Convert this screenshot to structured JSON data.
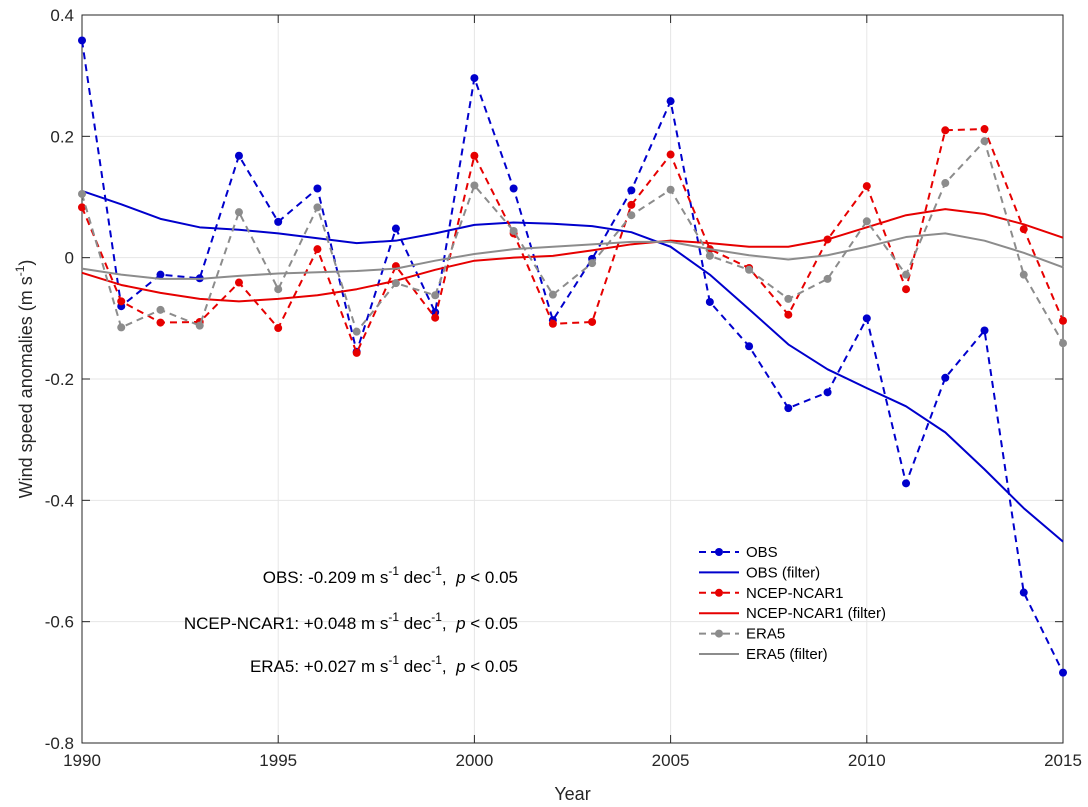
{
  "chart_data": {
    "type": "line",
    "xlabel": "Year",
    "ylabel": "Wind speed anomalies (m s",
    "ylabel_sup": "-1",
    "ylabel_end": ")",
    "xlim": [
      1990,
      2015
    ],
    "ylim": [
      -0.8,
      0.4
    ],
    "x_ticks": [
      1990,
      1995,
      2000,
      2005,
      2010,
      2015
    ],
    "y_ticks": [
      -0.8,
      -0.6,
      -0.4,
      -0.2,
      0,
      0.2,
      0.4
    ],
    "x_tick_labels": [
      "1990",
      "1995",
      "2000",
      "2005",
      "2010",
      "2015"
    ],
    "y_tick_labels": [
      "-0.8",
      "-0.6",
      "-0.4",
      "-0.2",
      "0",
      "0.2",
      "0.4"
    ],
    "grid": true,
    "legend_position": "bottom-right",
    "x": [
      1990,
      1991,
      1992,
      1993,
      1994,
      1995,
      1996,
      1997,
      1998,
      1999,
      2000,
      2001,
      2002,
      2003,
      2004,
      2005,
      2006,
      2007,
      2008,
      2009,
      2010,
      2011,
      2012,
      2013,
      2014,
      2015
    ],
    "series": [
      {
        "name": "OBS",
        "color": "#0000CC",
        "dash": true,
        "markers": true,
        "values": [
          0.358,
          -0.08,
          -0.028,
          -0.034,
          0.168,
          0.059,
          0.114,
          -0.155,
          0.048,
          -0.09,
          0.296,
          0.114,
          -0.103,
          -0.002,
          0.111,
          0.258,
          -0.073,
          -0.146,
          -0.248,
          -0.222,
          -0.1,
          -0.372,
          -0.198,
          -0.12,
          -0.552,
          -0.684
        ]
      },
      {
        "name": "OBS (filter)",
        "color": "#0000CC",
        "dash": false,
        "markers": false,
        "values": [
          0.11,
          0.088,
          0.064,
          0.05,
          0.046,
          0.04,
          0.032,
          0.024,
          0.028,
          0.04,
          0.054,
          0.058,
          0.056,
          0.052,
          0.042,
          0.018,
          -0.028,
          -0.085,
          -0.143,
          -0.184,
          -0.215,
          -0.245,
          -0.288,
          -0.349,
          -0.413,
          -0.468
        ]
      },
      {
        "name": "NCEP-NCAR1",
        "color": "#E60000",
        "dash": true,
        "markers": true,
        "values": [
          0.083,
          -0.072,
          -0.107,
          -0.106,
          -0.041,
          -0.116,
          0.014,
          -0.157,
          -0.014,
          -0.099,
          0.168,
          0.04,
          -0.109,
          -0.106,
          0.087,
          0.17,
          0.014,
          -0.017,
          -0.094,
          0.03,
          0.118,
          -0.052,
          0.21,
          0.212,
          0.047,
          -0.104
        ]
      },
      {
        "name": "NCEP-NCAR1 (filter)",
        "color": "#E60000",
        "dash": false,
        "markers": false,
        "values": [
          -0.025,
          -0.045,
          -0.058,
          -0.068,
          -0.072,
          -0.068,
          -0.062,
          -0.052,
          -0.038,
          -0.02,
          -0.005,
          0,
          0.003,
          0.012,
          0.022,
          0.028,
          0.024,
          0.018,
          0.018,
          0.03,
          0.05,
          0.07,
          0.08,
          0.072,
          0.055,
          0.033
        ]
      },
      {
        "name": "ERA5",
        "color": "#8C8C8C",
        "dash": true,
        "markers": true,
        "values": [
          0.105,
          -0.115,
          -0.086,
          -0.112,
          0.075,
          -0.052,
          0.083,
          -0.122,
          -0.042,
          -0.062,
          0.119,
          0.044,
          -0.061,
          -0.009,
          0.07,
          0.112,
          0.003,
          -0.02,
          -0.068,
          -0.035,
          0.06,
          -0.028,
          0.123,
          0.192,
          -0.028,
          -0.141
        ]
      },
      {
        "name": "ERA5 (filter)",
        "color": "#8C8C8C",
        "dash": false,
        "markers": false,
        "values": [
          -0.018,
          -0.028,
          -0.035,
          -0.035,
          -0.03,
          -0.026,
          -0.024,
          -0.022,
          -0.018,
          -0.005,
          0.006,
          0.014,
          0.018,
          0.022,
          0.026,
          0.026,
          0.014,
          0.004,
          -0.003,
          0.004,
          0.018,
          0.034,
          0.04,
          0.028,
          0.008,
          -0.016
        ]
      }
    ],
    "annotations": [
      {
        "prefix": "OBS: -0.209 m s",
        "sup1": "-1",
        "mid": " dec",
        "sup2": "-1",
        "comma": ",",
        "p": "p",
        "rest": " < 0.05"
      },
      {
        "prefix": "NCEP-NCAR1: +0.048 m s",
        "sup1": "-1",
        "mid": " dec",
        "sup2": "-1",
        "comma": ",",
        "p": "p",
        "rest": " < 0.05"
      },
      {
        "prefix": "ERA5: +0.027 m s",
        "sup1": "-1",
        "mid": " dec",
        "sup2": "-1",
        "comma": ",",
        "p": "p",
        "rest": " < 0.05"
      }
    ]
  }
}
